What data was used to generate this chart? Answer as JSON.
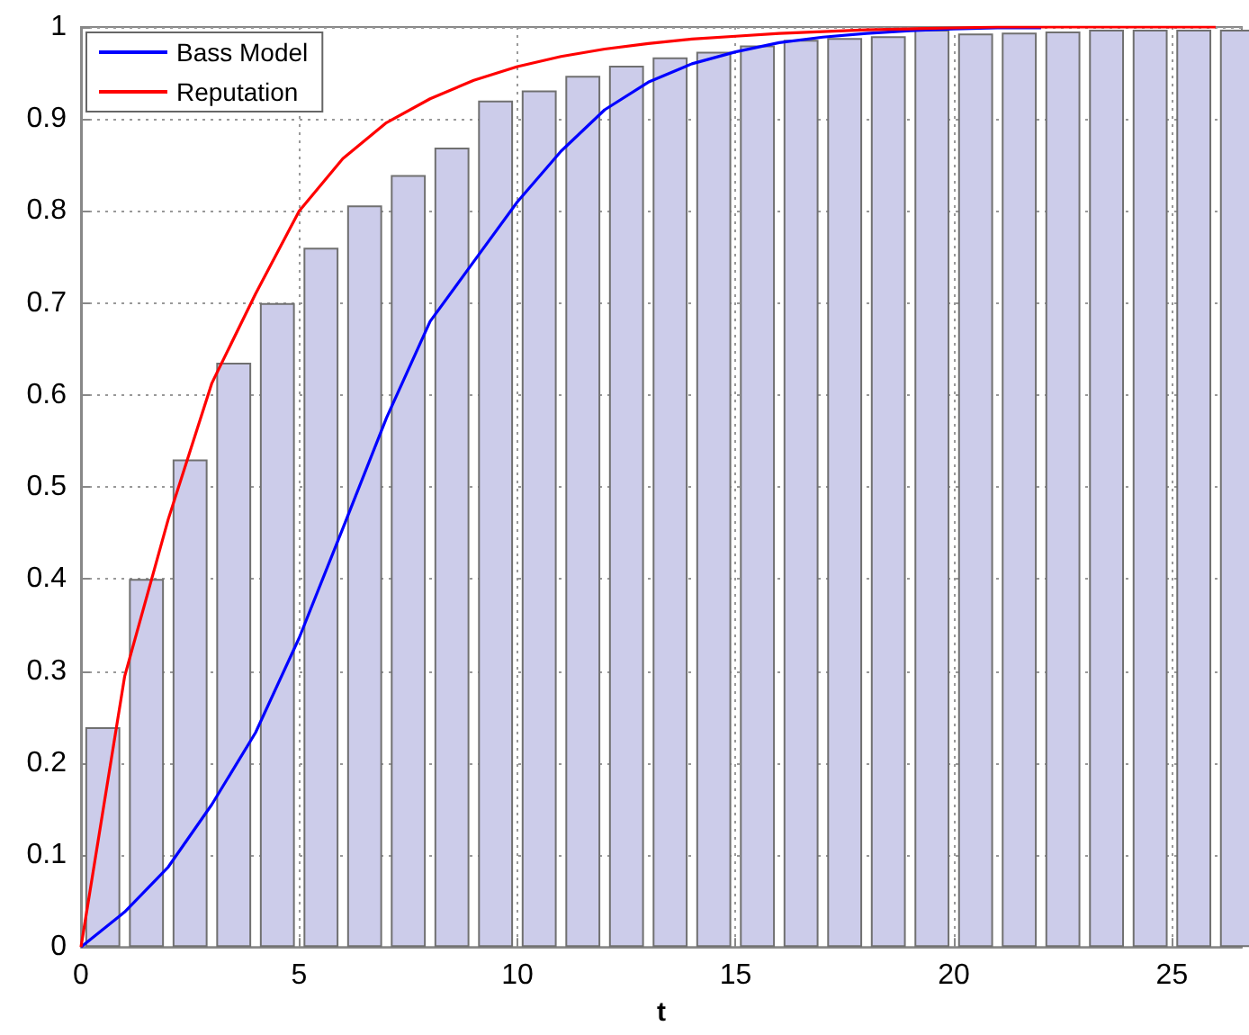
{
  "chart_data": {
    "type": "bar",
    "xlabel": "t",
    "xlim": [
      0,
      26.6
    ],
    "xticks": [
      0,
      5,
      10,
      15,
      20,
      25
    ],
    "ylim": [
      0,
      1
    ],
    "yticks": [
      0,
      0.1,
      0.2,
      0.3,
      0.4,
      0.5,
      0.6,
      0.7,
      0.8,
      0.9,
      1
    ],
    "grid": true,
    "legend": "top left",
    "series": [
      {
        "color": "#ccccea",
        "x": [
          0.5,
          1.5,
          2.5,
          3.5,
          4.5,
          5.5,
          6.5,
          7.5,
          8.5,
          9.5,
          10.5,
          11.5,
          12.5,
          13.5,
          14.5,
          15.5,
          16.5,
          17.5,
          18.5,
          19.5,
          20.5,
          21.5,
          22.5,
          23.5,
          24.5,
          25.5,
          26.5
        ],
        "values": [
          0.239,
          0.4,
          0.53,
          0.635,
          0.7,
          0.76,
          0.806,
          0.839,
          0.869,
          0.92,
          0.931,
          0.947,
          0.958,
          0.967,
          0.973,
          0.98,
          0.986,
          0.988,
          0.99,
          0.997,
          0.993,
          0.994,
          0.995,
          0.997,
          0.997,
          0.997,
          0.997
        ]
      },
      {
        "type": "line",
        "name": "Bass Model",
        "color": "#0000ff",
        "x": [
          0,
          1,
          2,
          3,
          4,
          5,
          6,
          7,
          8,
          9,
          10,
          11,
          12,
          13,
          14,
          15,
          16,
          17,
          18,
          19,
          20,
          21,
          22
        ],
        "values": [
          0,
          0.038,
          0.087,
          0.155,
          0.233,
          0.336,
          0.455,
          0.575,
          0.68,
          0.745,
          0.81,
          0.865,
          0.91,
          0.94,
          0.96,
          0.973,
          0.983,
          0.989,
          0.993,
          0.996,
          0.998,
          0.999,
          0.999
        ]
      },
      {
        "type": "line",
        "name": "Reputation",
        "color": "#ff0000",
        "x": [
          0,
          1,
          2,
          3,
          4,
          5,
          6,
          7,
          8,
          9,
          10,
          11,
          12,
          13,
          14,
          15,
          16,
          17,
          18,
          19,
          20,
          21,
          22,
          23,
          24,
          25,
          26
        ],
        "values": [
          0,
          0.294,
          0.465,
          0.613,
          0.71,
          0.8,
          0.857,
          0.896,
          0.922,
          0.942,
          0.957,
          0.968,
          0.976,
          0.982,
          0.987,
          0.99,
          0.993,
          0.995,
          0.997,
          0.998,
          0.999,
          1,
          1,
          1,
          1,
          1,
          1
        ]
      }
    ]
  }
}
